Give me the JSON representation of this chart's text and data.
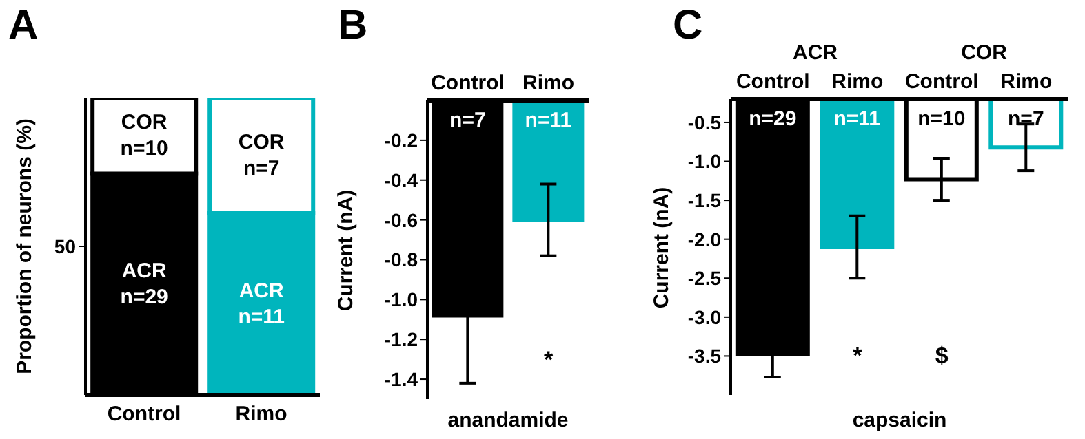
{
  "chart_data": [
    {
      "type": "bar",
      "title": "A",
      "ylabel": "Proportion of neurons (%)",
      "categories": [
        "Control",
        "Rimo"
      ],
      "stacked": true,
      "ylim": [
        0,
        100
      ],
      "yticks": [
        50
      ],
      "series": [
        {
          "name": null,
          "colors": [
            "#000000",
            "#00b5bd"
          ],
          "values": [
            74.4,
            61.1
          ]
        },
        {
          "name": null,
          "colors": [
            "#ffffff",
            "#ffffff"
          ],
          "values": [
            25.6,
            38.9
          ]
        }
      ],
      "annotations": [
        "ACR\nn=29",
        "ACR\nn=11",
        "COR\nn=10",
        "COR\nn=7"
      ]
    },
    {
      "type": "bar",
      "title": "B",
      "ylabel": "Current (nA)",
      "xlabel": "anandamide",
      "categories": [
        "Control",
        "Rimo"
      ],
      "ylim": [
        -1.5,
        0
      ],
      "yticks": [
        -0.2,
        -0.4,
        -0.6,
        -0.8,
        {
          "value": -1,
          "label": "-1.0"
        },
        -1.2,
        -1.4
      ],
      "colors": [
        "#000000",
        "#00b5bd"
      ],
      "values": [
        -1.08,
        -0.6
      ],
      "errors": [
        0.34,
        0.18
      ],
      "annotations": [
        "n=7",
        "n=11",
        "*"
      ]
    },
    {
      "type": "bar",
      "title": "C",
      "ylabel": "Current (nA)",
      "xlabel": "capsaicin",
      "categories": [
        "Control",
        "Rimo",
        "Control",
        "Rimo"
      ],
      "ylim": [
        -4.0,
        -0.2
      ],
      "yticks": [
        -0.5,
        {
          "value": -1,
          "label": "-1.0"
        },
        -1.5,
        {
          "value": -2,
          "label": "-2.0"
        },
        -2.5,
        {
          "value": -3,
          "label": "-3.0"
        },
        -3.5
      ],
      "colors": [
        "#000000",
        "#00b5bd",
        "#ffffff",
        "#ffffff"
      ],
      "values": [
        -3.47,
        -2.1,
        -1.23,
        -0.82
      ],
      "errors": [
        0.3,
        0.4,
        0.27,
        0.3
      ],
      "annotations": [
        "n=29",
        "n=11",
        "n=10",
        "n=7",
        "ACR",
        "COR",
        "*",
        "$"
      ]
    }
  ]
}
